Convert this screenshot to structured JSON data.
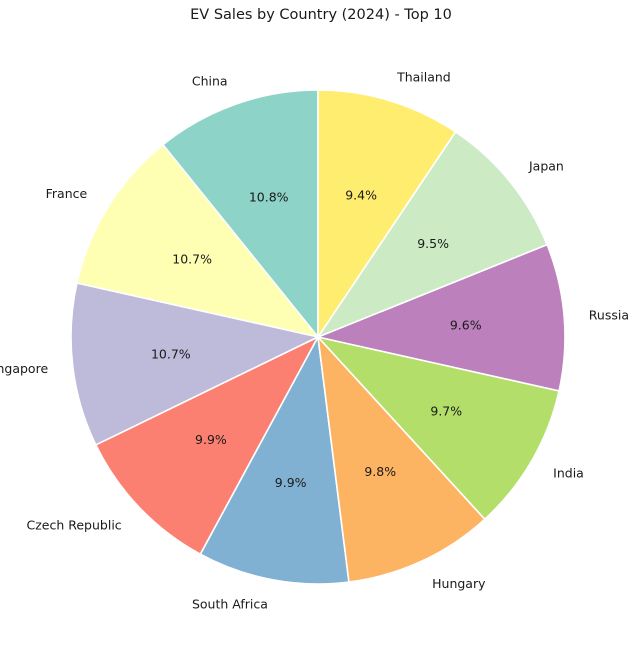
{
  "chart_data": {
    "type": "pie",
    "title": "EV Sales by Country (2024) - Top 10",
    "start_angle_deg": 90,
    "direction": "counterclockwise",
    "labels": [
      "China",
      "France",
      "Singapore",
      "Czech Republic",
      "South Africa",
      "Hungary",
      "India",
      "Russia",
      "Japan",
      "Thailand"
    ],
    "values": [
      10.8,
      10.7,
      10.7,
      9.9,
      9.9,
      9.8,
      9.7,
      9.6,
      9.5,
      9.4
    ],
    "pct_labels": [
      "10.8%",
      "10.7%",
      "10.7%",
      "9.9%",
      "9.9%",
      "9.8%",
      "9.7%",
      "9.6%",
      "9.5%",
      "9.4%"
    ],
    "colors": [
      "#8dd3c7",
      "#ffffb3",
      "#bebada",
      "#fb8072",
      "#80b1d3",
      "#fdb462",
      "#b3de69",
      "#bc80bd",
      "#ccebc5",
      "#ffed6f"
    ]
  }
}
